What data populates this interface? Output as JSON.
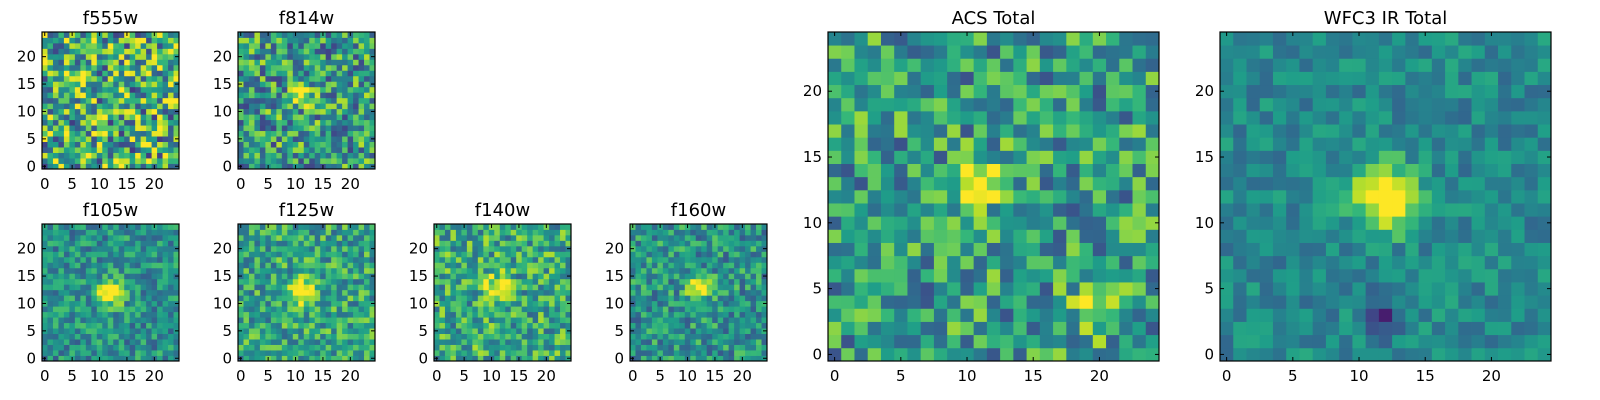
{
  "chart_data": [
    {
      "type": "heatmap",
      "title": "f555w",
      "xticks": [
        0,
        5,
        10,
        15,
        20
      ],
      "yticks": [
        0,
        5,
        10,
        15,
        20
      ],
      "grid_size": [
        25,
        25
      ],
      "xlim": [
        0,
        24
      ],
      "ylim": [
        0,
        24
      ],
      "colormap": "viridis",
      "source_peak": [
        12,
        12
      ],
      "note": "noisy image, weak/no source"
    },
    {
      "type": "heatmap",
      "title": "f814w",
      "xticks": [
        0,
        5,
        10,
        15,
        20
      ],
      "yticks": [
        0,
        5,
        10,
        15,
        20
      ],
      "grid_size": [
        25,
        25
      ],
      "xlim": [
        0,
        24
      ],
      "ylim": [
        0,
        24
      ],
      "colormap": "viridis",
      "source_peak": [
        11,
        13
      ],
      "note": "compact bright source near center"
    },
    {
      "type": "heatmap",
      "title": "f105w",
      "xticks": [
        0,
        5,
        10,
        15,
        20
      ],
      "yticks": [
        0,
        5,
        10,
        15,
        20
      ],
      "grid_size": [
        25,
        25
      ],
      "xlim": [
        0,
        24
      ],
      "ylim": [
        0,
        24
      ],
      "colormap": "viridis",
      "source_peak": [
        12,
        12
      ],
      "note": "bright source near center"
    },
    {
      "type": "heatmap",
      "title": "f125w",
      "xticks": [
        0,
        5,
        10,
        15,
        20
      ],
      "yticks": [
        0,
        5,
        10,
        15,
        20
      ],
      "grid_size": [
        25,
        25
      ],
      "xlim": [
        0,
        24
      ],
      "ylim": [
        0,
        24
      ],
      "colormap": "viridis",
      "source_peak": [
        11,
        12
      ],
      "note": "bright source near center"
    },
    {
      "type": "heatmap",
      "title": "f140w",
      "xticks": [
        0,
        5,
        10,
        15,
        20
      ],
      "yticks": [
        0,
        5,
        10,
        15,
        20
      ],
      "grid_size": [
        25,
        25
      ],
      "xlim": [
        0,
        24
      ],
      "ylim": [
        0,
        24
      ],
      "colormap": "viridis",
      "source_peak": [
        11,
        13
      ],
      "note": "bright source near center"
    },
    {
      "type": "heatmap",
      "title": "f160w",
      "xticks": [
        0,
        5,
        10,
        15,
        20
      ],
      "yticks": [
        0,
        5,
        10,
        15,
        20
      ],
      "grid_size": [
        25,
        25
      ],
      "xlim": [
        0,
        24
      ],
      "ylim": [
        0,
        24
      ],
      "colormap": "viridis",
      "source_peak": [
        12,
        13
      ],
      "note": "bright source near center"
    },
    {
      "type": "heatmap",
      "title": "ACS Total",
      "xticks": [
        0,
        5,
        10,
        15,
        20
      ],
      "yticks": [
        0,
        5,
        10,
        15,
        20
      ],
      "grid_size": [
        25,
        25
      ],
      "xlim": [
        0,
        24
      ],
      "ylim": [
        0,
        24
      ],
      "colormap": "viridis",
      "source_peak": [
        11,
        13
      ],
      "note": "bright source near center plus bright patch near (20, 4)"
    },
    {
      "type": "heatmap",
      "title": "WFC3 IR Total",
      "xticks": [
        0,
        5,
        10,
        15,
        20
      ],
      "yticks": [
        0,
        5,
        10,
        15,
        20
      ],
      "grid_size": [
        25,
        25
      ],
      "xlim": [
        0,
        24
      ],
      "ylim": [
        0,
        24
      ],
      "colormap": "viridis",
      "source_peak": [
        12,
        12
      ],
      "note": "bright source near center, dark spot near (12, 3)"
    }
  ]
}
